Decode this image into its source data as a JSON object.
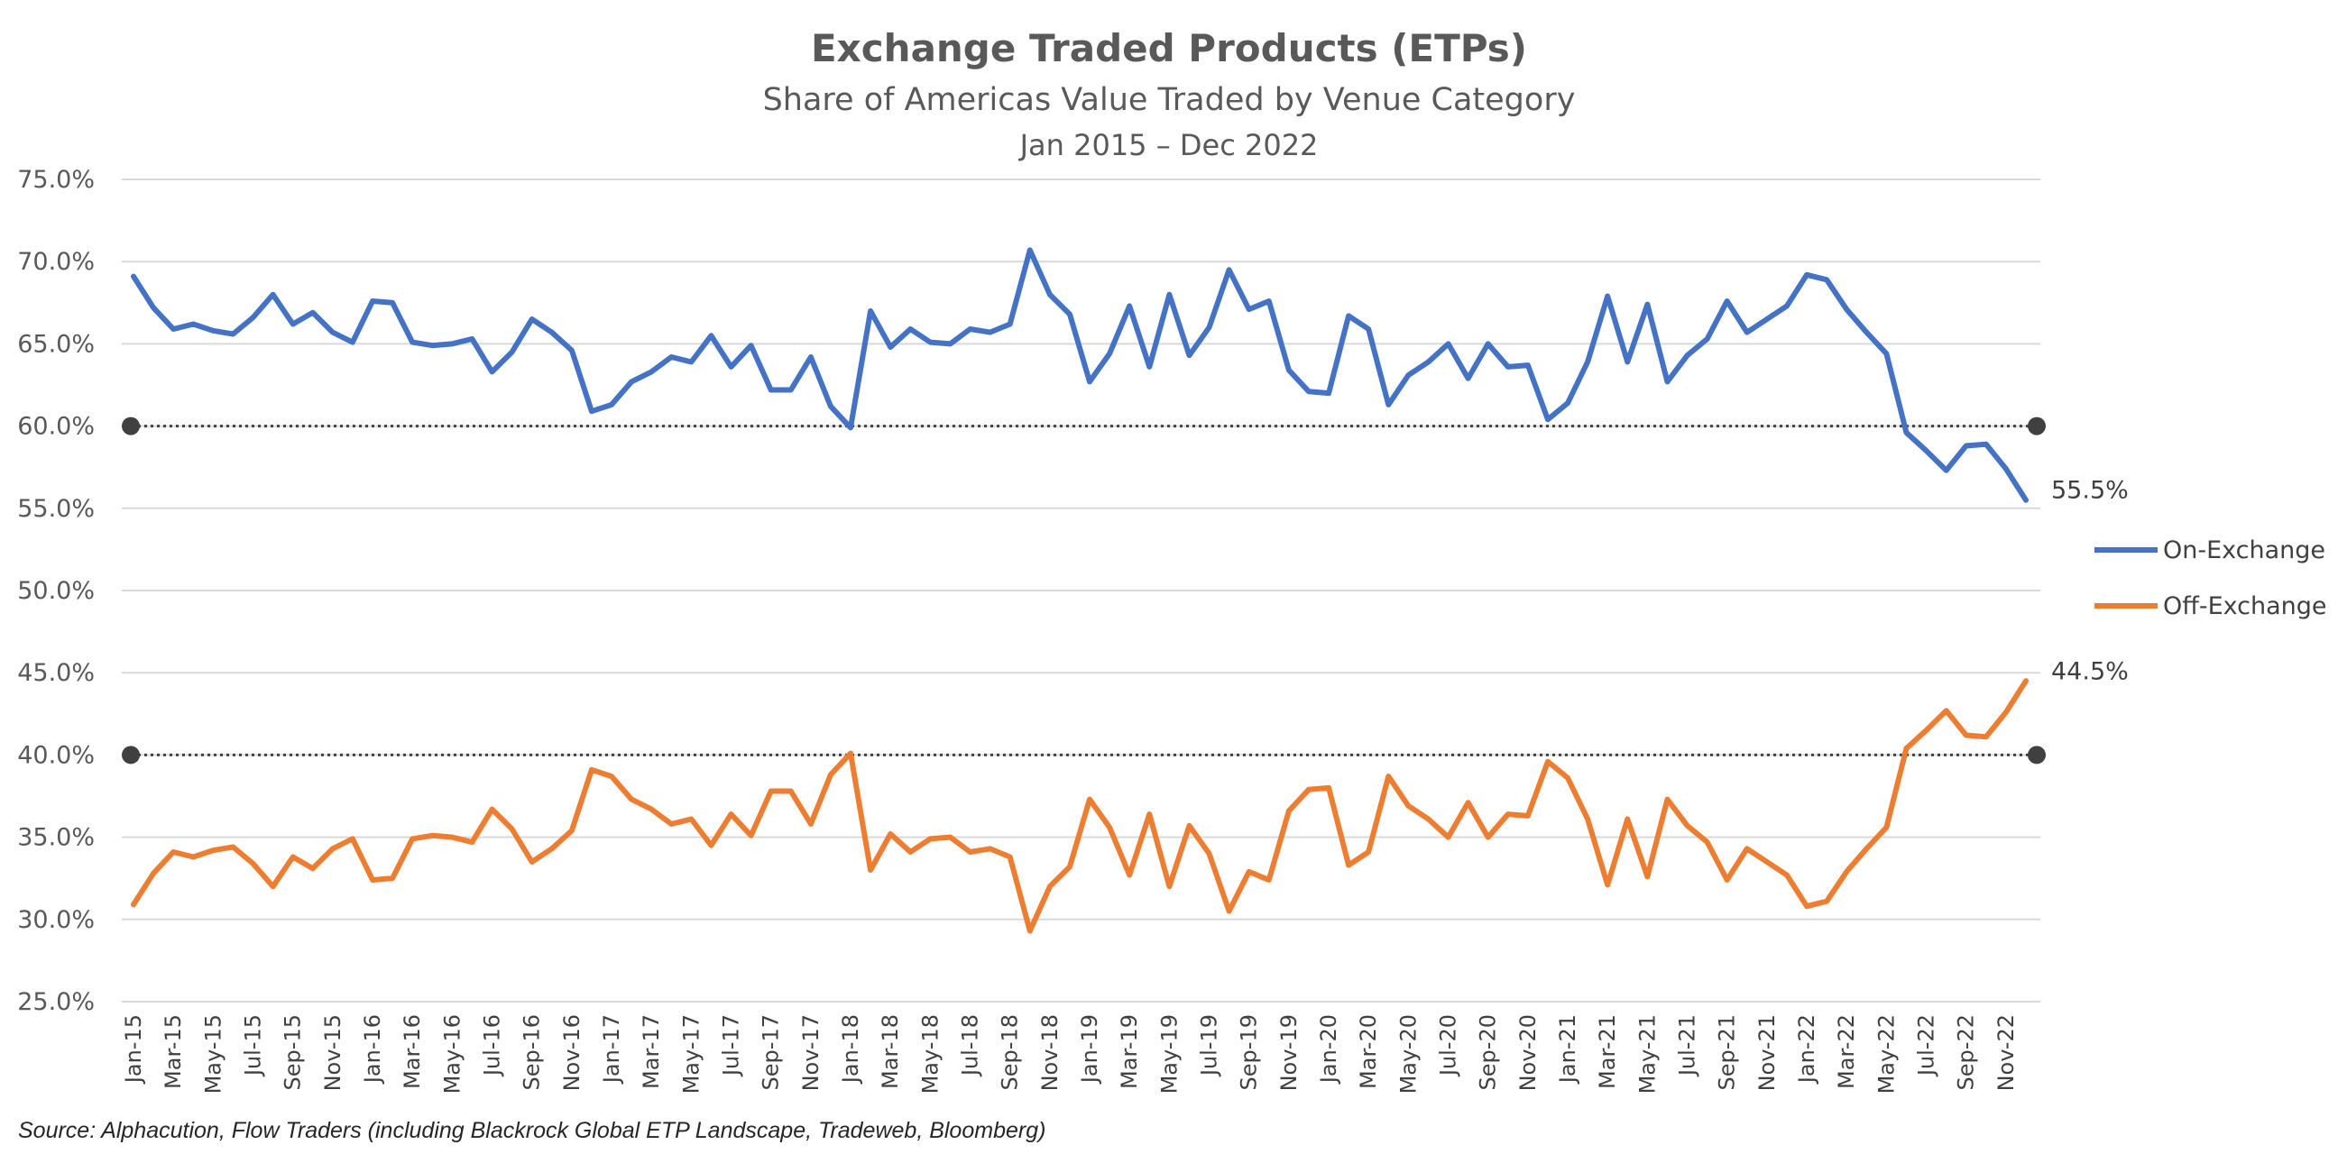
{
  "chart_data": {
    "type": "line",
    "title": "Exchange Traded Products (ETPs)",
    "subtitle": "Share of Americas Value Traded by Venue Category",
    "date_range": "Jan 2015 – Dec 2022",
    "source": "Source: Alphacution, Flow Traders (including Blackrock Global ETP Landscape, Tradeweb, Bloomberg)",
    "xlabel": "",
    "ylabel": "",
    "ylim": [
      25,
      75
    ],
    "y_ticks": [
      "75.0%",
      "70.0%",
      "65.0%",
      "60.0%",
      "55.0%",
      "50.0%",
      "45.0%",
      "40.0%",
      "35.0%",
      "30.0%",
      "25.0%"
    ],
    "x_tick_labels": [
      "Jan-15",
      "Mar-15",
      "May-15",
      "Jul-15",
      "Sep-15",
      "Nov-15",
      "Jan-16",
      "Mar-16",
      "May-16",
      "Jul-16",
      "Sep-16",
      "Nov-16",
      "Jan-17",
      "Mar-17",
      "May-17",
      "Jul-17",
      "Sep-17",
      "Nov-17",
      "Jan-18",
      "Mar-18",
      "May-18",
      "Jul-18",
      "Sep-18",
      "Nov-18",
      "Jan-19",
      "Mar-19",
      "May-19",
      "Jul-19",
      "Sep-19",
      "Nov-19",
      "Jan-20",
      "Mar-20",
      "May-20",
      "Jul-20",
      "Sep-20",
      "Nov-20",
      "Jan-21",
      "Mar-21",
      "May-21",
      "Jul-21",
      "Sep-21",
      "Nov-21",
      "Jan-22",
      "Mar-22",
      "May-22",
      "Jul-22",
      "Sep-22",
      "Nov-22"
    ],
    "grid": "horizontal",
    "legend_position": "right",
    "reference_lines": [
      60,
      40
    ],
    "series": [
      {
        "name": "On-Exchange",
        "color": "#4472C4",
        "end_label": "55.5%",
        "values": [
          69.1,
          67.2,
          65.9,
          66.2,
          65.8,
          65.6,
          66.6,
          68.0,
          66.2,
          66.9,
          65.7,
          65.1,
          67.6,
          67.5,
          65.1,
          64.9,
          65.0,
          65.3,
          63.3,
          64.5,
          66.5,
          65.7,
          64.6,
          60.9,
          61.3,
          62.7,
          63.3,
          64.2,
          63.9,
          65.5,
          63.6,
          64.9,
          62.2,
          62.2,
          64.2,
          61.2,
          59.9,
          67.0,
          64.8,
          65.9,
          65.1,
          65.0,
          65.9,
          65.7,
          66.2,
          70.7,
          68.0,
          66.8,
          62.7,
          64.4,
          67.3,
          63.6,
          68.0,
          64.3,
          66.0,
          69.5,
          67.1,
          67.6,
          63.4,
          62.1,
          62.0,
          66.7,
          65.9,
          61.3,
          63.1,
          63.9,
          65.0,
          62.9,
          65.0,
          63.6,
          63.7,
          60.4,
          61.4,
          63.9,
          67.9,
          63.9,
          67.4,
          62.7,
          64.3,
          65.3,
          67.6,
          65.7,
          66.5,
          67.3,
          69.2,
          68.9,
          67.1,
          65.7,
          64.4,
          59.6,
          58.5,
          57.3,
          58.8,
          58.9,
          57.4,
          55.5
        ]
      },
      {
        "name": "Off-Exchange",
        "color": "#ED7D31",
        "end_label": "44.5%",
        "values": [
          30.9,
          32.8,
          34.1,
          33.8,
          34.2,
          34.4,
          33.4,
          32.0,
          33.8,
          33.1,
          34.3,
          34.9,
          32.4,
          32.5,
          34.9,
          35.1,
          35.0,
          34.7,
          36.7,
          35.5,
          33.5,
          34.3,
          35.4,
          39.1,
          38.7,
          37.3,
          36.7,
          35.8,
          36.1,
          34.5,
          36.4,
          35.1,
          37.8,
          37.8,
          35.8,
          38.8,
          40.1,
          33.0,
          35.2,
          34.1,
          34.9,
          35.0,
          34.1,
          34.3,
          33.8,
          29.3,
          32.0,
          33.2,
          37.3,
          35.6,
          32.7,
          36.4,
          32.0,
          35.7,
          34.0,
          30.5,
          32.9,
          32.4,
          36.6,
          37.9,
          38.0,
          33.3,
          34.1,
          38.7,
          36.9,
          36.1,
          35.0,
          37.1,
          35.0,
          36.4,
          36.3,
          39.6,
          38.6,
          36.1,
          32.1,
          36.1,
          32.6,
          37.3,
          35.7,
          34.7,
          32.4,
          34.3,
          33.5,
          32.7,
          30.8,
          31.1,
          32.9,
          34.3,
          35.6,
          40.4,
          41.5,
          42.7,
          41.2,
          41.1,
          42.6,
          44.5
        ]
      }
    ]
  }
}
